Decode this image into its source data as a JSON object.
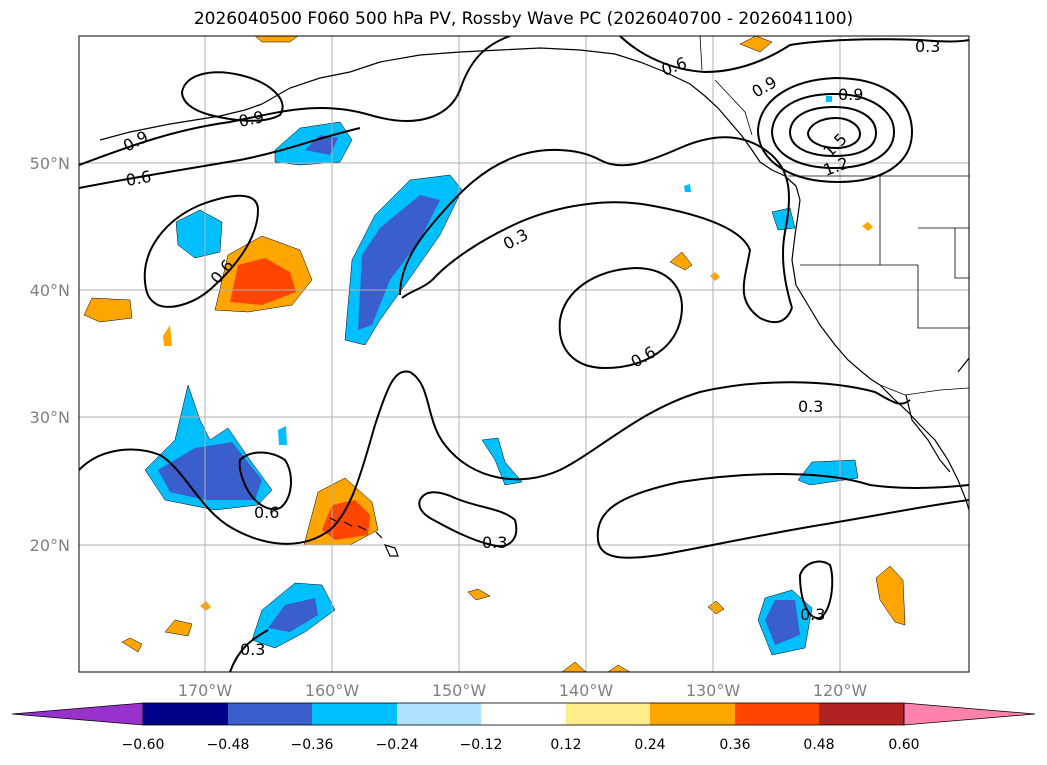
{
  "title": "2026040500 F060 500 hPa PV, Rossby Wave PC (2026040700 - 2026041100)",
  "lat_labels": [
    "50°N",
    "40°N",
    "30°N",
    "20°N"
  ],
  "lon_labels": [
    "170°W",
    "160°W",
    "150°W",
    "140°W",
    "130°W",
    "120°W"
  ],
  "colorbar": {
    "colors": [
      "#9932cc",
      "#00008b",
      "#3a5fcd",
      "#00bfff",
      "#b0e2ff",
      "#ffffff",
      "#ffec8b",
      "#ffa500",
      "#ff4500",
      "#b22222",
      "#ff82ab"
    ],
    "ticks": [
      "−0.60",
      "−0.48",
      "−0.36",
      "−0.24",
      "−0.12",
      "0.12",
      "0.24",
      "0.36",
      "0.48",
      "0.60"
    ]
  },
  "contour_labels": [
    "0.9",
    "0.9",
    "0.6",
    "0.6",
    "0.3",
    "0.6",
    "0.6",
    "0.3",
    "0.3",
    "0.3",
    "0.3",
    "0.3",
    "0.9",
    "0.9",
    "1.5",
    "1.2",
    "0.6",
    "0.3"
  ]
}
